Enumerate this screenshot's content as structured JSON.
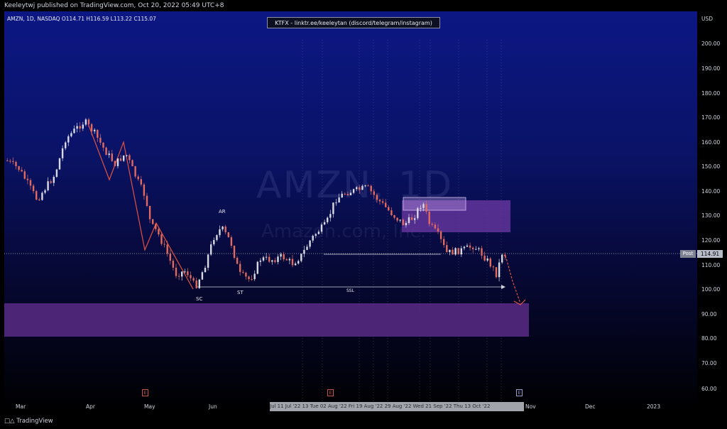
{
  "header": {
    "published": "Keeleytwj published on TradingView.com, Oct 20, 2022 05:49 UTC+8"
  },
  "symbol": {
    "line": "AMZN, 1D, NASDAQ  O114.71  H116.59  L113.22  C115.07",
    "watermark": "AMZN, 1D",
    "watermark_sub": "Amazon.com, Inc."
  },
  "banner": {
    "text": "KTFX - linktr.ee/keeleytan (discord/telegram/instagram)"
  },
  "price_axis": {
    "currency": "USD",
    "ticks": [
      "200.00",
      "190.00",
      "180.00",
      "170.00",
      "160.00",
      "150.00",
      "140.00",
      "130.00",
      "120.00",
      "110.00",
      "100.00",
      "90.00",
      "80.00",
      "70.00",
      "60.00"
    ],
    "post_label": "Post",
    "current_price": "114.91"
  },
  "time_axis": {
    "ticks": [
      "Mar",
      "Apr",
      "May",
      "Jun",
      "Nov",
      "Dec",
      "2023"
    ],
    "range_label": "Jul   11 Jul '22   13   Tue 02 Aug '22   Fri 19 Aug '22   29 Aug '22   Wed 21 Sep '22   Thu 13 Oct '22"
  },
  "annotations": {
    "ar": "AR",
    "sc": "SC",
    "st": "ST",
    "ssl": "SSL"
  },
  "events": [
    {
      "label": "E",
      "kind": "earnings"
    },
    {
      "label": "E",
      "kind": "earnings"
    },
    {
      "label": "E",
      "kind": "upcoming"
    }
  ],
  "footer": {
    "brand": "TradingView"
  },
  "colors": {
    "up": "#d7dae2",
    "down": "#e26a5f",
    "zone": "#8e4fbe",
    "line_pattern": "#e2523f"
  }
}
